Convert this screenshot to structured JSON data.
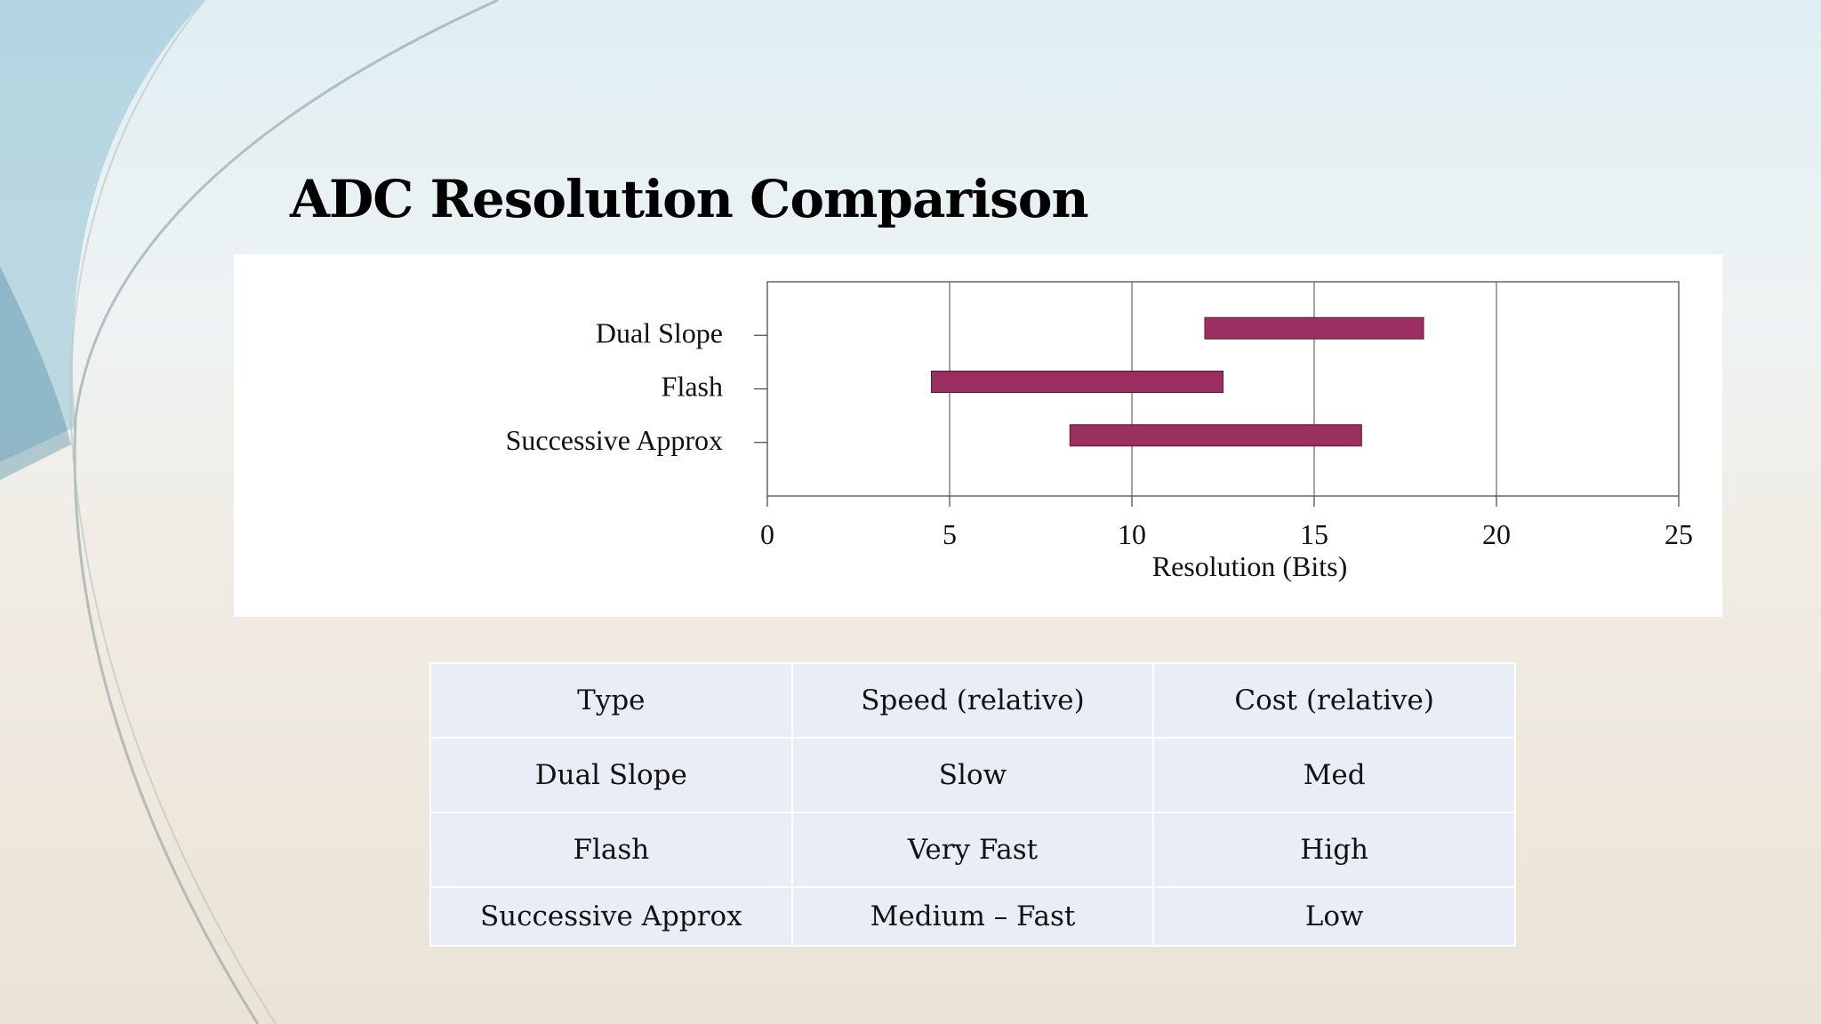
{
  "slide": {
    "title": "ADC Resolution Comparison"
  },
  "chart_data": {
    "type": "bar",
    "orientation": "horizontal-range",
    "categories": [
      "Dual Slope",
      "Flash",
      "Successive   Approx"
    ],
    "series": [
      {
        "ranges": [
          [
            12,
            18
          ],
          [
            4.5,
            12.5
          ],
          [
            8.3,
            16.3
          ]
        ]
      }
    ],
    "xlabel": "Resolution (Bits)",
    "ylabel": "",
    "xlim": [
      0,
      25
    ],
    "xticks": [
      "0",
      "5",
      "10",
      "15",
      "20",
      "25"
    ],
    "grid": "vertical",
    "bar_color": "#9b2f5f"
  },
  "table": {
    "header": [
      "Type",
      "Speed (relative)",
      "Cost (relative)"
    ],
    "rows": [
      [
        "Dual Slope",
        "Slow",
        "Med"
      ],
      [
        "Flash",
        "Very Fast",
        "High"
      ],
      [
        "Successive Approx",
        "Medium – Fast",
        "Low"
      ]
    ]
  }
}
